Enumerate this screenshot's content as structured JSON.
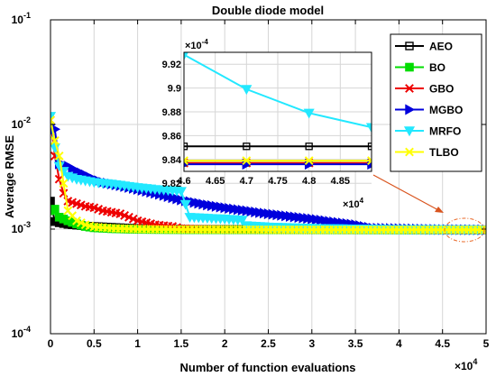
{
  "chart_data": {
    "type": "line",
    "title": "Double diode model",
    "xlabel": "Number of function evaluations",
    "ylabel": "Average RMSE",
    "xlim": [
      0,
      50000
    ],
    "ylim": [
      0.0001,
      0.1
    ],
    "yscale": "log",
    "x_tick_labels": [
      "0",
      "0.5",
      "1",
      "1.5",
      "2",
      "2.5",
      "3",
      "3.5",
      "4",
      "4.5",
      "5"
    ],
    "x_exponent_label": "×10",
    "x_exponent": "4",
    "y_tick_labels": [
      {
        "base": "10",
        "exp": "-4",
        "value": 0.0001
      },
      {
        "base": "10",
        "exp": "-3",
        "value": 0.001
      },
      {
        "base": "10",
        "exp": "-2",
        "value": 0.01
      },
      {
        "base": "10",
        "exp": "-1",
        "value": 0.1
      }
    ],
    "grid": true,
    "legend_position": "top-right",
    "series": [
      {
        "name": "AEO",
        "color": "#000000",
        "marker": "square",
        "x": [
          0,
          500,
          1000,
          1500,
          2000,
          2500,
          3000,
          3500,
          4000,
          5000,
          6000,
          8000,
          10000,
          15000,
          20000,
          30000,
          40000,
          50000
        ],
        "y": [
          0.00185,
          0.00118,
          0.00115,
          0.00113,
          0.00111,
          0.0011,
          0.00109,
          0.00108,
          0.00107,
          0.00106,
          0.00105,
          0.00103,
          0.00101,
          0.000995,
          0.00099,
          0.000987,
          0.000986,
          0.000985
        ]
      },
      {
        "name": "BO",
        "color": "#00dd00",
        "marker": "square",
        "x": [
          0,
          500,
          1000,
          2000,
          3000,
          4000,
          5000,
          7000,
          10000,
          15000,
          20000,
          30000,
          40000,
          50000
        ],
        "y": [
          0.0015,
          0.00155,
          0.0013,
          0.0012,
          0.00112,
          0.00106,
          0.00103,
          0.00101,
          0.000995,
          0.00099,
          0.000988,
          0.000986,
          0.000984,
          0.000984
        ]
      },
      {
        "name": "GBO",
        "color": "#ee0000",
        "marker": "x",
        "x": [
          0,
          500,
          1000,
          1500,
          2000,
          3000,
          4000,
          5000,
          6000,
          7000,
          8000,
          9000,
          10000,
          11000,
          12000,
          14000,
          15000,
          17000,
          20000,
          30000,
          40000,
          50000
        ],
        "y": [
          0.011,
          0.005,
          0.003,
          0.0022,
          0.00185,
          0.00175,
          0.00165,
          0.0016,
          0.0015,
          0.00145,
          0.0014,
          0.0013,
          0.0012,
          0.00115,
          0.0011,
          0.00106,
          0.00101,
          0.001,
          0.000992,
          0.000988,
          0.000985,
          0.000984
        ]
      },
      {
        "name": "MGBO",
        "color": "#0000dd",
        "marker": "triangle-right",
        "x": [
          0,
          500,
          1000,
          2000,
          3000,
          4000,
          5000,
          6000,
          8000,
          10000,
          12000,
          15000,
          18000,
          20000,
          25000,
          30000,
          35000,
          37000,
          40000,
          45000,
          50000
        ],
        "y": [
          0.01,
          0.009,
          0.0042,
          0.004,
          0.0036,
          0.0033,
          0.003,
          0.0028,
          0.0026,
          0.0024,
          0.0022,
          0.0019,
          0.0017,
          0.0016,
          0.0014,
          0.00125,
          0.0011,
          0.00102,
          0.00101,
          0.00099,
          0.000984
        ]
      },
      {
        "name": "MRFO",
        "color": "#22e8ff",
        "marker": "triangle-down",
        "x": [
          0,
          500,
          1000,
          2000,
          3000,
          4000,
          5000,
          7000,
          10000,
          12000,
          15000,
          16000,
          20000,
          22000,
          22500,
          25000,
          30000,
          37000,
          40000,
          45000,
          50000
        ],
        "y": [
          0.012,
          0.006,
          0.004,
          0.0032,
          0.003,
          0.0029,
          0.0028,
          0.0027,
          0.0025,
          0.0024,
          0.0023,
          0.0013,
          0.00125,
          0.00122,
          0.00108,
          0.00105,
          0.00102,
          0.001,
          0.000995,
          0.00099,
          0.000987
        ]
      },
      {
        "name": "TLBO",
        "color": "#ffff00",
        "marker": "x",
        "x": [
          0,
          500,
          1000,
          2000,
          3000,
          4000,
          5000,
          7000,
          10000,
          15000,
          20000,
          30000,
          40000,
          50000
        ],
        "y": [
          0.011,
          0.007,
          0.005,
          0.0015,
          0.0012,
          0.0011,
          0.00105,
          0.00102,
          0.001,
          0.00099,
          0.000988,
          0.000986,
          0.000985,
          0.000984
        ]
      }
    ],
    "inset": {
      "xlim": [
        46000,
        49000
      ],
      "ylim": [
        0.000983,
        0.000993
      ],
      "x_tick_labels": [
        "4.6",
        "4.65",
        "4.7",
        "4.75",
        "4.8",
        "4.85"
      ],
      "x_exponent_label": "×10",
      "x_exponent": "4",
      "y_tick_labels": [
        "9.82",
        "9.84",
        "9.86",
        "9.88",
        "9.9",
        "9.92"
      ],
      "y_exponent_label": "×10",
      "y_exponent": "-4",
      "series": [
        {
          "name": "AEO",
          "x": [
            46000,
            47000,
            48000,
            49000
          ],
          "y": [
            0.0009851,
            0.0009851,
            0.0009851,
            0.0009851
          ]
        },
        {
          "name": "BO",
          "x": [
            46000,
            47000,
            48000,
            49000
          ],
          "y": [
            0.0009837,
            0.0009837,
            0.0009837,
            0.0009837
          ]
        },
        {
          "name": "GBO",
          "x": [
            46000,
            47000,
            48000,
            49000
          ],
          "y": [
            0.0009837,
            0.0009837,
            0.0009837,
            0.0009837
          ]
        },
        {
          "name": "MGBO",
          "x": [
            46000,
            47000,
            48000,
            49000
          ],
          "y": [
            0.0009836,
            0.0009836,
            0.0009836,
            0.0009836
          ]
        },
        {
          "name": "MRFO",
          "x": [
            46000,
            47000,
            48000,
            49000
          ],
          "y": [
            0.0009928,
            0.0009899,
            0.0009879,
            0.0009867
          ]
        },
        {
          "name": "TLBO",
          "x": [
            46000,
            47000,
            48000,
            49000
          ],
          "y": [
            0.0009839,
            0.0009839,
            0.0009839,
            0.0009839
          ]
        }
      ]
    }
  }
}
